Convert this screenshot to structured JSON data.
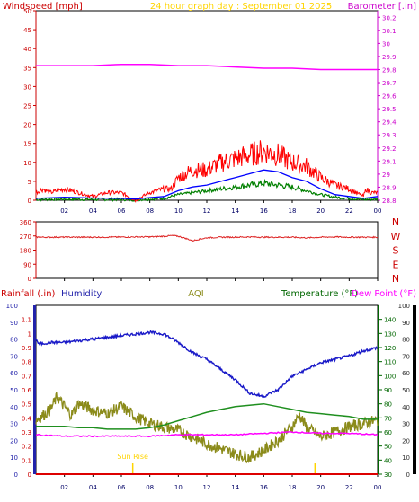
{
  "chart_data": [
    {
      "id": "wind",
      "type": "line",
      "title": "24 hour graph day : September 01 2025",
      "left_label": "Windspeed [mph]",
      "right_label": "Barometer [.in]",
      "x_ticks": [
        "02",
        "04",
        "06",
        "08",
        "10",
        "12",
        "14",
        "16",
        "18",
        "20",
        "22",
        "00"
      ],
      "ylim_left": [
        0,
        50
      ],
      "y_ticks_left": [
        "0",
        "5",
        "10",
        "15",
        "20",
        "25",
        "30",
        "35",
        "40",
        "45",
        "50"
      ],
      "ylim_right": [
        28.8,
        30.25
      ],
      "y_ticks_right": [
        "28.8",
        "28.9",
        "29",
        "29.1",
        "29.2",
        "29.3",
        "29.4",
        "29.5",
        "29.6",
        "29.7",
        "29.8",
        "29.9",
        "30",
        "30.1",
        "30.2"
      ],
      "colors": {
        "gust": "#ff0000",
        "avg": "#0000ff",
        "speed": "#008000",
        "baro": "#ff00ff",
        "title": "#ffd400",
        "axis_left": "#cc0000",
        "axis_right": "#cc00cc"
      },
      "series": [
        {
          "key": "gust",
          "x": [
            0,
            0.5,
            1,
            2,
            3,
            4,
            5,
            6,
            7,
            7.5,
            8,
            9,
            9.5,
            10,
            11,
            12,
            13,
            14,
            15,
            16,
            17,
            18,
            19,
            20,
            21,
            22,
            23,
            23.2,
            23.5,
            24
          ],
          "y": [
            2,
            3,
            2,
            3,
            2,
            1,
            2,
            2,
            0,
            1,
            2,
            3,
            3,
            6,
            8,
            8,
            10,
            11,
            12,
            13,
            12,
            10,
            9,
            6,
            4,
            3,
            1,
            3,
            2,
            2
          ]
        },
        {
          "key": "avg",
          "x": [
            0,
            2,
            4,
            6,
            7,
            8,
            9,
            10,
            11,
            12,
            13,
            14,
            15,
            16,
            17,
            18,
            19,
            20,
            21,
            22,
            23,
            24
          ],
          "y": [
            0.5,
            0.8,
            0.6,
            0.5,
            0.3,
            0.7,
            1,
            2.5,
            3.5,
            4,
            5,
            6,
            7,
            8,
            7.5,
            6,
            5,
            3,
            1.5,
            1,
            0.5,
            1
          ]
        },
        {
          "key": "speed",
          "x": [
            0,
            2,
            4,
            6,
            7,
            8,
            9,
            10,
            11,
            12,
            13,
            14,
            15,
            16,
            17,
            18,
            19,
            20,
            21,
            22,
            23,
            24
          ],
          "y": [
            0.2,
            0.3,
            0.2,
            0.2,
            0.1,
            0.3,
            0.5,
            1.5,
            2,
            2.5,
            3,
            3.5,
            4,
            4.5,
            4,
            3.5,
            2.5,
            1.5,
            0.8,
            0.5,
            0.2,
            0.3
          ]
        },
        {
          "key": "baro",
          "axis": "right",
          "x": [
            0,
            2,
            4,
            6,
            8,
            10,
            12,
            14,
            16,
            18,
            20,
            22,
            24
          ],
          "y": [
            29.83,
            29.83,
            29.83,
            29.84,
            29.84,
            29.83,
            29.83,
            29.82,
            29.81,
            29.81,
            29.8,
            29.8,
            29.8
          ]
        }
      ]
    },
    {
      "id": "direction",
      "type": "line",
      "x_ticks": [
        "02",
        "04",
        "06",
        "08",
        "10",
        "12",
        "14",
        "16",
        "18",
        "20",
        "22",
        "00"
      ],
      "ylim": [
        0,
        360
      ],
      "y_ticks": [
        "0",
        "90",
        "180",
        "270",
        "360"
      ],
      "compass_labels": [
        "N",
        "W",
        "S",
        "E",
        "N"
      ],
      "colors": {
        "line": "#dd2222",
        "axis": "#cc0000"
      },
      "series": [
        {
          "key": "dir",
          "x": [
            0,
            2,
            4,
            6,
            8,
            9,
            9.5,
            10,
            10.5,
            11,
            11.5,
            12,
            13,
            14,
            15,
            16,
            17,
            18,
            19,
            20,
            21,
            22,
            23,
            24
          ],
          "y": [
            262,
            262,
            262,
            263,
            264,
            268,
            272,
            268,
            255,
            240,
            250,
            258,
            262,
            262,
            264,
            262,
            262,
            262,
            258,
            262,
            264,
            262,
            262,
            262
          ]
        }
      ]
    },
    {
      "id": "climate",
      "type": "line",
      "left_label": "Rainfall (.in)",
      "left2_label": "Humidity",
      "center_label": "AQI",
      "right_label_temp": "Temperature (°F)",
      "right_label_dew": "Dew Point (°F)",
      "sunrise_label": "Sun Rise",
      "x_ticks": [
        "02",
        "04",
        "06",
        "08",
        "10",
        "12",
        "14",
        "16",
        "18",
        "20",
        "22",
        "00"
      ],
      "ylim_rain": [
        0,
        1.2
      ],
      "y_ticks_rain": [
        "0",
        "0.1",
        "0.2",
        "0.3",
        "0.4",
        "0.5",
        "0.6",
        "0.7",
        "0.8",
        "0.9",
        "1",
        "1.1"
      ],
      "ylim_hum": [
        0,
        100
      ],
      "y_ticks_hum": [
        "0",
        "10",
        "20",
        "30",
        "40",
        "50",
        "60",
        "70",
        "80",
        "90",
        "100"
      ],
      "ylim_temp": [
        30,
        150
      ],
      "y_ticks_temp": [
        "30",
        "40",
        "50",
        "60",
        "70",
        "80",
        "90",
        "100",
        "110",
        "120",
        "130",
        "140"
      ],
      "ylim_aqi": [
        0,
        100
      ],
      "y_ticks_aqi": [
        "0",
        "10",
        "20",
        "30",
        "40",
        "50",
        "60",
        "70",
        "80",
        "90",
        "100"
      ],
      "sunrise_hour": 6.8,
      "sunset_hour": 19.6,
      "colors": {
        "rain": "#dd0000",
        "hum": "#1a1ac8",
        "aqi": "#8b8b1a",
        "temp": "#1f8f1f",
        "dew": "#ff00ff",
        "sun": "#ffd400",
        "axis_rain": "#cc0000",
        "axis_hum": "#2222aa",
        "axis_temp": "#006600"
      },
      "series": [
        {
          "key": "hum",
          "x": [
            0,
            0.2,
            1,
            2,
            3,
            4,
            5,
            6,
            7,
            8,
            9,
            10,
            11,
            12,
            13,
            14,
            15,
            16,
            17,
            18,
            19,
            20,
            21,
            22,
            23,
            24
          ],
          "y": [
            80,
            77,
            78,
            78,
            79,
            80,
            81,
            82,
            83,
            84,
            83,
            78,
            72,
            68,
            62,
            56,
            48,
            46,
            50,
            58,
            62,
            66,
            68,
            70,
            73,
            75
          ]
        },
        {
          "key": "aqi",
          "x": [
            0,
            1,
            1.5,
            2,
            2.5,
            3,
            4,
            5,
            6,
            7,
            8,
            9,
            10,
            11,
            12,
            13,
            14,
            15,
            16,
            17,
            18,
            18.5,
            19,
            20,
            21,
            22,
            23,
            24
          ],
          "y": [
            32,
            38,
            46,
            40,
            35,
            42,
            38,
            36,
            40,
            34,
            30,
            28,
            26,
            22,
            18,
            15,
            12,
            10,
            14,
            20,
            28,
            35,
            28,
            22,
            25,
            28,
            30,
            32
          ]
        },
        {
          "key": "temp",
          "axis": "temp",
          "x": [
            0,
            1,
            2,
            3,
            4,
            5,
            6,
            7,
            8,
            9,
            10,
            11,
            12,
            13,
            14,
            15,
            16,
            17,
            18,
            19,
            20,
            21,
            22,
            23,
            24
          ],
          "y": [
            64,
            64,
            64,
            63,
            63,
            62,
            62,
            62,
            63,
            65,
            68,
            71,
            74,
            76,
            78,
            79,
            80,
            78,
            76,
            74,
            73,
            72,
            71,
            69,
            69
          ]
        },
        {
          "key": "dew",
          "axis": "temp",
          "x": [
            0,
            2,
            4,
            6,
            8,
            10,
            12,
            14,
            16,
            18,
            20,
            22,
            24
          ],
          "y": [
            58,
            57,
            57,
            57,
            57,
            58,
            58,
            58,
            59,
            60,
            59,
            59,
            58
          ]
        }
      ]
    }
  ]
}
